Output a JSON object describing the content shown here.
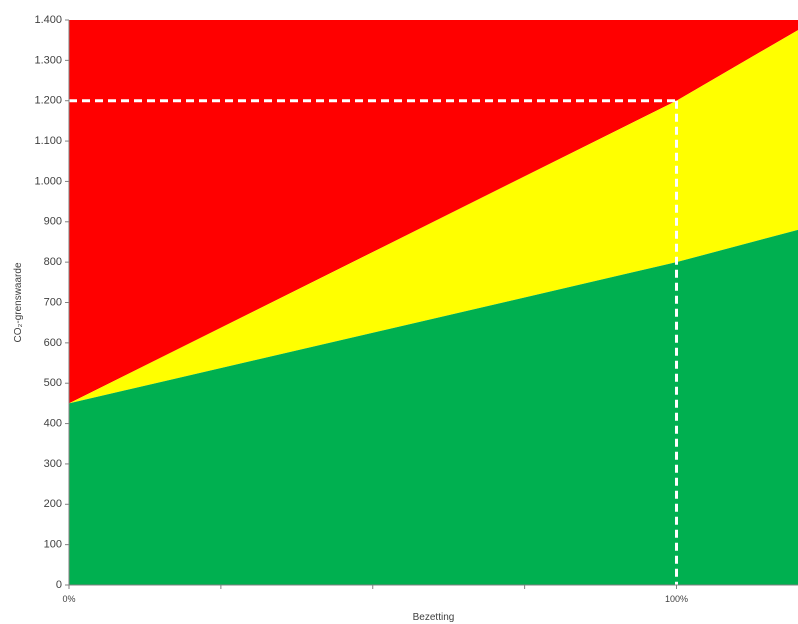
{
  "chart_data": {
    "type": "area",
    "xlabel": "Bezetting",
    "ylabel": "CO₂-grenswaarde",
    "x_unit": "%",
    "xlim": [
      0,
      120
    ],
    "ylim": [
      0,
      1400
    ],
    "x_ticks": [
      0,
      25,
      50,
      75,
      100
    ],
    "x_tick_labels": [
      "0%",
      "",
      "",
      "",
      "100%"
    ],
    "y_ticks": [
      0,
      100,
      200,
      300,
      400,
      500,
      600,
      700,
      800,
      900,
      1000,
      1100,
      1200,
      1300,
      1400
    ],
    "y_tick_labels": [
      "0",
      "100",
      "200",
      "300",
      "400",
      "500",
      "600",
      "700",
      "800",
      "900",
      "1.000",
      "1.100",
      "1.200",
      "1.300",
      "1.400"
    ],
    "boundaries": {
      "green_upper": {
        "x": [
          0,
          100,
          120
        ],
        "y": [
          450,
          800,
          880
        ]
      },
      "yellow_upper": {
        "x": [
          0,
          100,
          120
        ],
        "y": [
          450,
          1200,
          1375
        ]
      }
    },
    "zones": [
      {
        "color": "#00b050",
        "from": "axis",
        "to": "green_upper"
      },
      {
        "color": "#ffff00",
        "from": "green_upper",
        "to": "yellow_upper"
      },
      {
        "color": "#ff0000",
        "from": "yellow_upper",
        "to": "top"
      }
    ],
    "reference_lines": {
      "x": 100,
      "y": 1200,
      "style": "dashed",
      "color": "#ffffff"
    },
    "grid": false
  }
}
